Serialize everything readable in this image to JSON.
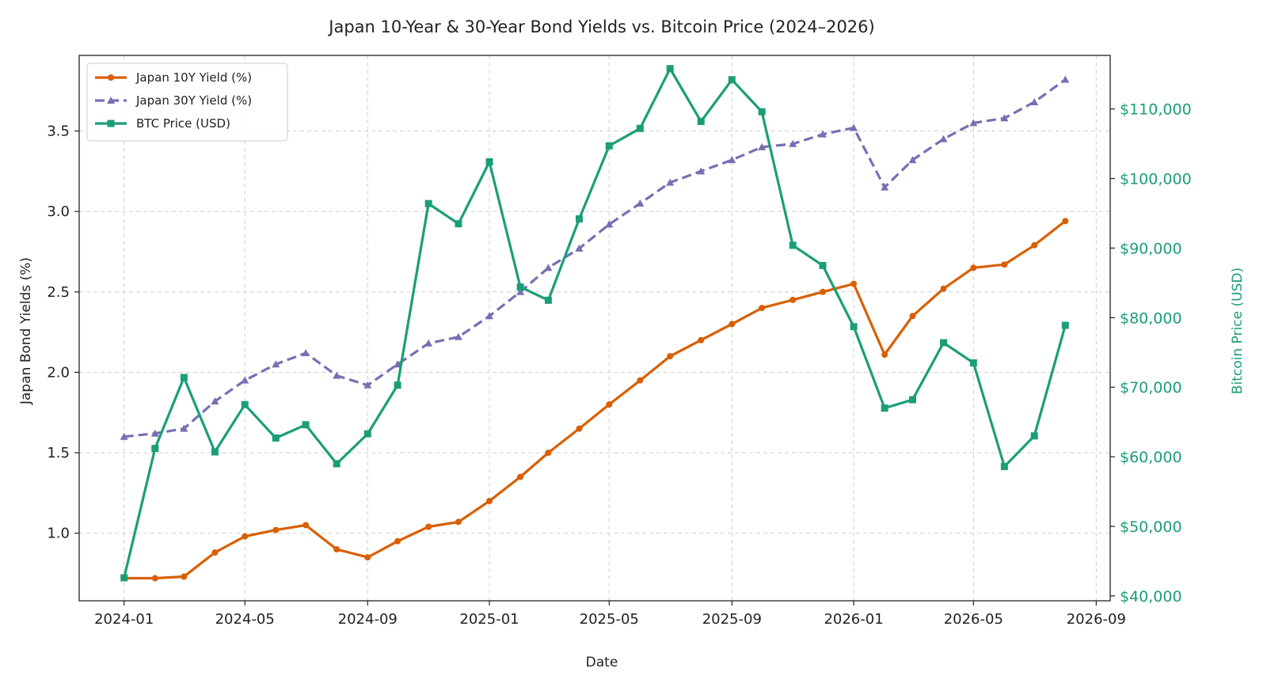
{
  "chart_data": {
    "type": "line",
    "title": "Japan 10-Year & 30-Year Bond Yields vs. Bitcoin Price (2024–2026)",
    "xlabel": "Date",
    "ylabel": "Japan Bond Yields (%)",
    "ylabel_right": "Bitcoin Price (USD)",
    "x": [
      "2024-01",
      "2024-02",
      "2024-03",
      "2024-04",
      "2024-05",
      "2024-06",
      "2024-07",
      "2024-08",
      "2024-09",
      "2024-10",
      "2024-11",
      "2024-12",
      "2025-01",
      "2025-02",
      "2025-03",
      "2025-04",
      "2025-05",
      "2025-06",
      "2025-07",
      "2025-08",
      "2025-09",
      "2025-10",
      "2025-11",
      "2025-12",
      "2026-01",
      "2026-02",
      "2026-03",
      "2026-04",
      "2026-05",
      "2026-06",
      "2026-07",
      "2026-08"
    ],
    "x_ticks": [
      "2024-01",
      "2024-05",
      "2024-09",
      "2025-01",
      "2025-05",
      "2025-09",
      "2026-01",
      "2026-05",
      "2026-09"
    ],
    "xlim": [
      "2023-11-17",
      "2026-09-15"
    ],
    "ylim": [
      0.58,
      3.97
    ],
    "y_ticks": [
      "1.0",
      "1.5",
      "2.0",
      "2.5",
      "3.0",
      "3.5"
    ],
    "ylim_right": [
      39300,
      117700
    ],
    "y_ticks_right": [
      {
        "value": 40000,
        "label": "$40,000"
      },
      {
        "value": 50000,
        "label": "$50,000"
      },
      {
        "value": 60000,
        "label": "$60,000"
      },
      {
        "value": 70000,
        "label": "$70,000"
      },
      {
        "value": 80000,
        "label": "$80,000"
      },
      {
        "value": 90000,
        "label": "$90,000"
      },
      {
        "value": 100000,
        "label": "$100,000"
      },
      {
        "value": 110000,
        "label": "$110,000"
      }
    ],
    "grid": true,
    "legend_position": "upper-left",
    "series": [
      {
        "name": "Japan 10Y Yield (%)",
        "axis": "left",
        "color": "#d95f02",
        "marker": "circle",
        "dash": "solid",
        "values": [
          0.72,
          0.72,
          0.73,
          0.88,
          0.98,
          1.02,
          1.05,
          0.9,
          0.85,
          0.95,
          1.04,
          1.07,
          1.2,
          1.35,
          1.5,
          1.65,
          1.8,
          1.95,
          2.1,
          2.2,
          2.3,
          2.4,
          2.45,
          2.5,
          2.55,
          2.11,
          2.35,
          2.52,
          2.65,
          2.67,
          2.79,
          2.94
        ]
      },
      {
        "name": "Japan 30Y Yield (%)",
        "axis": "left",
        "color": "#7570b3",
        "marker": "triangle",
        "dash": "dashed",
        "values": [
          1.6,
          1.62,
          1.65,
          1.82,
          1.95,
          2.05,
          2.12,
          1.98,
          1.92,
          2.05,
          2.18,
          2.22,
          2.35,
          2.5,
          2.65,
          2.77,
          2.92,
          3.05,
          3.18,
          3.25,
          3.32,
          3.4,
          3.42,
          3.48,
          3.52,
          3.15,
          3.32,
          3.45,
          3.55,
          3.58,
          3.68,
          3.82
        ]
      },
      {
        "name": "BTC Price (USD)",
        "axis": "right",
        "color": "#1b9e77",
        "marker": "square",
        "dash": "solid",
        "values": [
          42600,
          61200,
          71400,
          60700,
          67500,
          62700,
          64600,
          59000,
          63300,
          70300,
          96400,
          93500,
          102400,
          84400,
          82500,
          94200,
          104700,
          107200,
          115800,
          108200,
          114200,
          109600,
          90400,
          87500,
          78700,
          67000,
          68200,
          76400,
          73500,
          58600,
          63000,
          78900
        ]
      }
    ]
  }
}
